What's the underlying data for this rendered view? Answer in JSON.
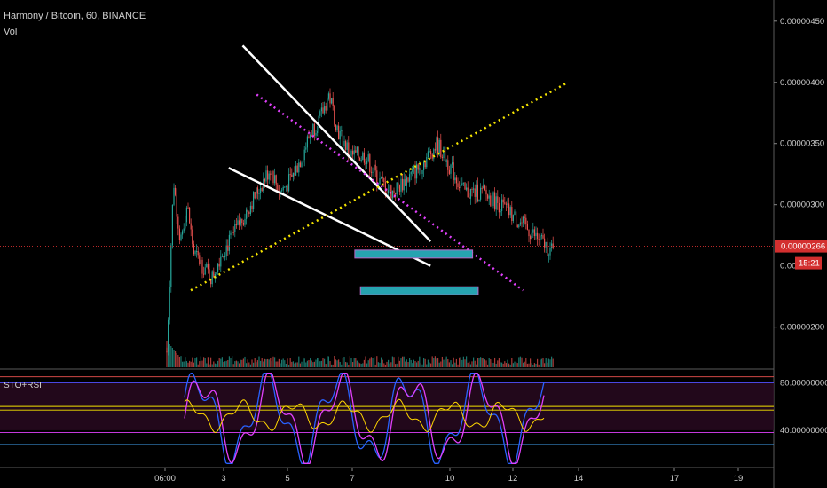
{
  "header": {
    "symbol_line": "Harmony / Bitcoin, 60, BINANCE",
    "volume_label": "Vol",
    "indicator_label": "STO+RSI"
  },
  "price_axis": {
    "ticks": [
      "0.00000450",
      "0.00000400",
      "0.00000350",
      "0.00000300",
      "0.00000200"
    ],
    "current_price": "0.00000266",
    "partial_label": "0.000",
    "countdown": "15:21"
  },
  "indicator_axis": {
    "ticks": [
      "80.00000000",
      "40.00000000"
    ]
  },
  "time_axis": {
    "ticks": [
      "06:00",
      "3",
      "5",
      "7",
      "10",
      "12",
      "14",
      "17",
      "19"
    ]
  },
  "colors": {
    "up": "#26a69a",
    "down": "#ef5350",
    "bg": "#000000",
    "trendline": "#ffffff",
    "magenta_line": "#e040fb",
    "yellow_line": "#f5e400",
    "zone_fill": "#26a3b0",
    "zone_border": "#ba68c8",
    "price_tag": "#d32f2f",
    "stoch_k": "#2962ff",
    "stoch_d": "#e040fb",
    "rsi": "#ffd600"
  },
  "chart_data": {
    "type": "candlestick",
    "title": "Harmony / Bitcoin, 60, BINANCE",
    "ylim": [
      1.7e-06,
      4.6e-06
    ],
    "indicator": "STO+RSI",
    "indicator_ylim": [
      10,
      90
    ],
    "indicator_levels": [
      80,
      40
    ],
    "current_price": 2.66e-06,
    "price_path": [
      [
        0,
        1.8e-06
      ],
      [
        3,
        3.2e-06
      ],
      [
        6,
        2.7e-06
      ],
      [
        9,
        3e-06
      ],
      [
        12,
        2.6e-06
      ],
      [
        16,
        2.5e-06
      ],
      [
        20,
        2.4e-06
      ],
      [
        24,
        2.6e-06
      ],
      [
        28,
        2.7e-06
      ],
      [
        34,
        2.9e-06
      ],
      [
        40,
        3.1e-06
      ],
      [
        46,
        3.3e-06
      ],
      [
        50,
        3.1e-06
      ],
      [
        55,
        3.2e-06
      ],
      [
        60,
        3.4e-06
      ],
      [
        64,
        3.6e-06
      ],
      [
        68,
        3.7e-06
      ],
      [
        72,
        3.9e-06
      ],
      [
        76,
        3.6e-06
      ],
      [
        82,
        3.4e-06
      ],
      [
        88,
        3.4e-06
      ],
      [
        94,
        3.2e-06
      ],
      [
        100,
        3.1e-06
      ],
      [
        106,
        3.2e-06
      ],
      [
        112,
        3.3e-06
      ],
      [
        120,
        3.5e-06
      ],
      [
        126,
        3.3e-06
      ],
      [
        132,
        3.1e-06
      ],
      [
        140,
        3.1e-06
      ],
      [
        148,
        3e-06
      ],
      [
        154,
        2.9e-06
      ],
      [
        160,
        2.8e-06
      ],
      [
        166,
        2.7e-06
      ],
      [
        172,
        2.6e-06
      ]
    ],
    "drawings": [
      {
        "kind": "trendline",
        "style": "solid",
        "color": "white",
        "from": [
          56,
          4.3e-06
        ],
        "to": [
          190,
          2.7e-06
        ]
      },
      {
        "kind": "trendline",
        "style": "solid",
        "color": "white",
        "from": [
          46,
          3.3e-06
        ],
        "to": [
          190,
          2.5e-06
        ]
      },
      {
        "kind": "trendline",
        "style": "dotted",
        "color": "magenta",
        "from": [
          66,
          3.9e-06
        ],
        "to": [
          256,
          2.3e-06
        ]
      },
      {
        "kind": "trendline",
        "style": "dotted",
        "color": "yellow",
        "from": [
          19,
          2.3e-06
        ],
        "to": [
          288,
          4e-06
        ]
      },
      {
        "kind": "zone",
        "from": [
          136,
          2.6e-06
        ],
        "to": [
          220,
          2.6e-06
        ]
      },
      {
        "kind": "zone",
        "from": [
          140,
          2.3e-06
        ],
        "to": [
          224,
          2.3e-06
        ]
      }
    ]
  }
}
